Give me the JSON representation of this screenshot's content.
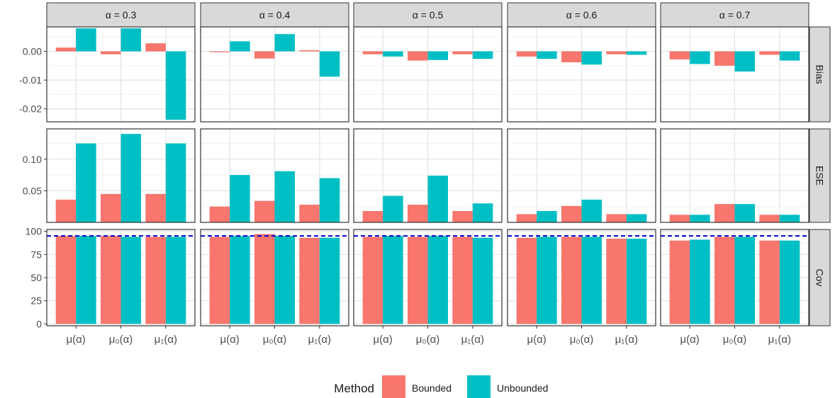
{
  "chart_data": {
    "type": "bar",
    "facet_columns": [
      "α = 0.3",
      "α = 0.4",
      "α = 0.5",
      "α = 0.6",
      "α = 0.7"
    ],
    "facet_rows": [
      "Bias",
      "ESE",
      "Cov"
    ],
    "categories": [
      "μ(α)",
      "μ₀(α)",
      "μ₁(α)"
    ],
    "legend": {
      "title": "Method",
      "position": "bottom",
      "entries": [
        "Bounded",
        "Unbounded"
      ]
    },
    "colors": {
      "Bounded": "#F8766D",
      "Unbounded": "#00BFC4",
      "reference_line": "#0000CC",
      "strip_bg": "#D9D9D9"
    },
    "grid": true,
    "reference_line": {
      "row": "Cov",
      "y": 95,
      "style": "dashed"
    },
    "rows": {
      "Bias": {
        "ylim": [
          -0.0245,
          0.0085
        ],
        "ticks": [
          0.0,
          -0.01,
          -0.02
        ],
        "tick_labels": [
          "0.00",
          "-0.01",
          "-0.02"
        ],
        "minor_ticks": [
          0.005,
          -0.005,
          -0.015
        ]
      },
      "ESE": {
        "ylim": [
          0,
          0.148
        ],
        "ticks": [
          0.05,
          0.1
        ],
        "tick_labels": [
          "0.05",
          "0.10"
        ],
        "minor_ticks": [
          0.025,
          0.075,
          0.125
        ]
      },
      "Cov": {
        "ylim": [
          -2,
          102
        ],
        "ticks": [
          0,
          25,
          50,
          75,
          100
        ],
        "tick_labels": [
          "0",
          "25",
          "50",
          "75",
          "100"
        ],
        "minor_ticks": [
          12.5,
          37.5,
          62.5,
          87.5
        ]
      }
    },
    "values": {
      "Bias": {
        "Bounded": [
          [
            0.0013,
            -0.001,
            0.0028
          ],
          [
            -0.0003,
            -0.0025,
            0.0004
          ],
          [
            -0.001,
            -0.0032,
            -0.001
          ],
          [
            -0.0018,
            -0.0038,
            -0.001
          ],
          [
            -0.0028,
            -0.005,
            -0.0012
          ]
        ],
        "Unbounded": [
          [
            0.008,
            0.008,
            -0.0238
          ],
          [
            0.0035,
            0.006,
            -0.0088
          ],
          [
            -0.0018,
            -0.003,
            -0.0026
          ],
          [
            -0.0026,
            -0.0046,
            -0.0012
          ],
          [
            -0.0044,
            -0.007,
            -0.0032
          ]
        ]
      },
      "ESE": {
        "Bounded": [
          [
            0.036,
            0.045,
            0.045
          ],
          [
            0.025,
            0.034,
            0.028
          ],
          [
            0.018,
            0.028,
            0.018
          ],
          [
            0.013,
            0.026,
            0.013
          ],
          [
            0.012,
            0.029,
            0.012
          ]
        ],
        "Unbounded": [
          [
            0.125,
            0.14,
            0.125
          ],
          [
            0.075,
            0.081,
            0.07
          ],
          [
            0.042,
            0.074,
            0.03
          ],
          [
            0.018,
            0.036,
            0.013
          ],
          [
            0.012,
            0.029,
            0.012
          ]
        ]
      },
      "Cov": {
        "Bounded": [
          [
            95,
            95,
            94
          ],
          [
            94,
            97,
            93
          ],
          [
            94,
            94,
            94
          ],
          [
            93,
            94,
            92
          ],
          [
            90,
            94,
            90
          ]
        ],
        "Unbounded": [
          [
            95,
            94,
            94
          ],
          [
            95,
            95,
            93
          ],
          [
            95,
            95,
            93
          ],
          [
            94,
            94,
            92
          ],
          [
            91,
            94,
            90
          ]
        ]
      }
    }
  }
}
